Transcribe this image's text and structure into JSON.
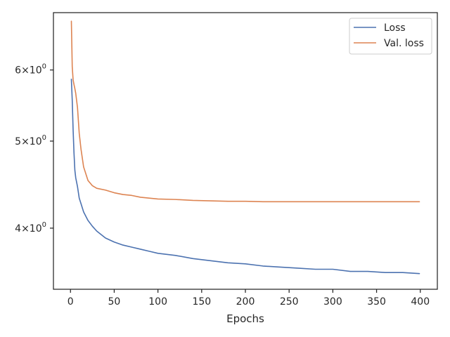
{
  "chart_data": {
    "type": "line",
    "title": "",
    "xlabel": "Epochs",
    "ylabel": "",
    "xlim": [
      -19.5,
      419.5
    ],
    "ylim": [
      3.42,
      6.95
    ],
    "yscale": "log",
    "grid": false,
    "legend_position": "top-right",
    "x_ticks": [
      0,
      50,
      100,
      150,
      200,
      250,
      300,
      350,
      400
    ],
    "x_tick_labels": [
      "0",
      "50",
      "100",
      "150",
      "200",
      "250",
      "300",
      "350",
      "400"
    ],
    "y_ticks": [
      {
        "value": 4,
        "base": "4",
        "factor": "10",
        "exp": "0"
      },
      {
        "value": 5,
        "base": "5",
        "factor": "10",
        "exp": "0"
      },
      {
        "value": 6,
        "base": "6",
        "factor": "10",
        "exp": "0"
      }
    ],
    "x": [
      1,
      2,
      3,
      4,
      5,
      6,
      8,
      10,
      12,
      15,
      20,
      25,
      30,
      40,
      50,
      60,
      70,
      80,
      90,
      100,
      120,
      140,
      160,
      180,
      200,
      220,
      240,
      260,
      280,
      300,
      320,
      340,
      360,
      380,
      399
    ],
    "series": [
      {
        "name": "Loss",
        "color": "#4c72b0",
        "values": [
          5.86,
          5.55,
          5.15,
          4.85,
          4.64,
          4.55,
          4.45,
          4.32,
          4.26,
          4.17,
          4.08,
          4.02,
          3.97,
          3.9,
          3.86,
          3.83,
          3.81,
          3.79,
          3.77,
          3.75,
          3.73,
          3.7,
          3.68,
          3.66,
          3.65,
          3.63,
          3.62,
          3.61,
          3.6,
          3.6,
          3.58,
          3.58,
          3.57,
          3.57,
          3.56
        ]
      },
      {
        "name": "Val. loss",
        "color": "#dd8452",
        "values": [
          6.8,
          6.05,
          5.85,
          5.78,
          5.72,
          5.65,
          5.45,
          5.1,
          4.9,
          4.68,
          4.52,
          4.46,
          4.43,
          4.41,
          4.38,
          4.36,
          4.35,
          4.33,
          4.32,
          4.31,
          4.305,
          4.295,
          4.29,
          4.285,
          4.285,
          4.28,
          4.28,
          4.28,
          4.28,
          4.28,
          4.28,
          4.28,
          4.28,
          4.28,
          4.28
        ]
      }
    ]
  }
}
